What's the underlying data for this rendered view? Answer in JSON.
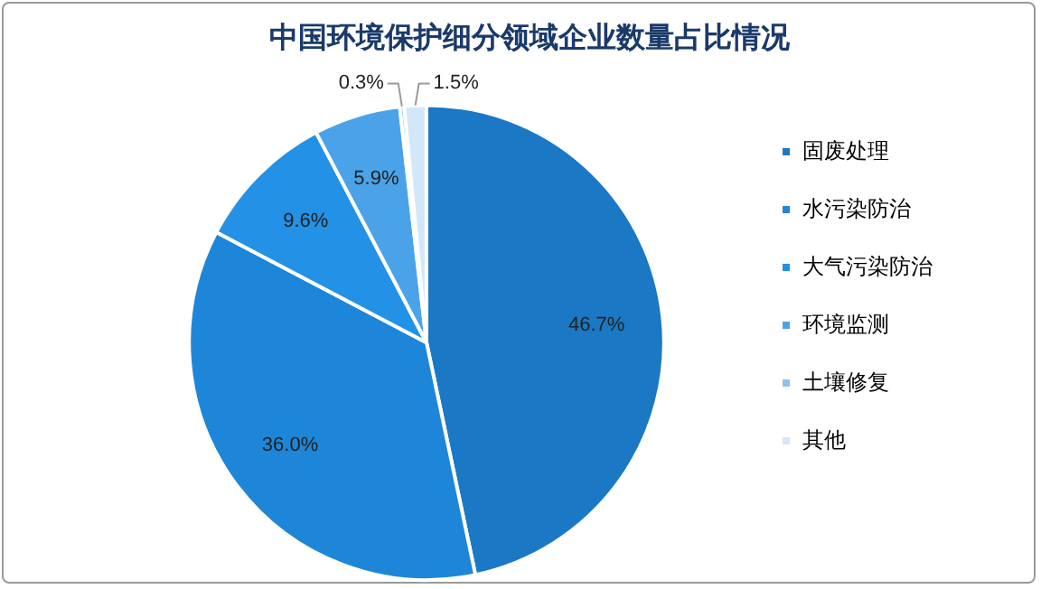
{
  "chart_data": {
    "type": "pie",
    "title": "中国环境保护细分领域企业数量占比情况",
    "categories": [
      "固废处理",
      "水污染防治",
      "大气污染防治",
      "环境监测",
      "土壤修复",
      "其他"
    ],
    "values": [
      46.7,
      36.0,
      9.6,
      5.9,
      0.3,
      1.5
    ],
    "value_labels": [
      "46.7%",
      "36.0%",
      "9.6%",
      "5.9%",
      "0.3%",
      "1.5%"
    ],
    "colors": [
      "#1a78c4",
      "#1e86d8",
      "#2391e6",
      "#4aa3e8",
      "#8cc0ee",
      "#d4e7f8"
    ],
    "legend": "right"
  }
}
